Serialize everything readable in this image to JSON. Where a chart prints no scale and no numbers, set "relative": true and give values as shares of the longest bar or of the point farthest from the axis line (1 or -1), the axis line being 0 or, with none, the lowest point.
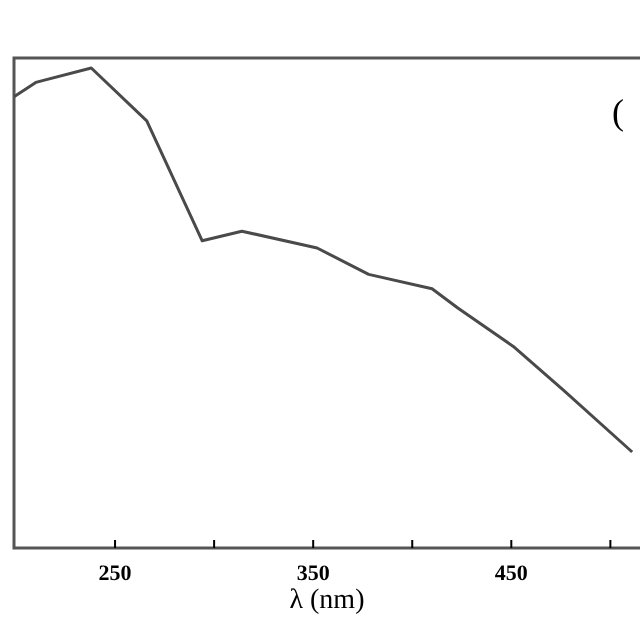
{
  "chart_data": {
    "type": "line",
    "relative": true,
    "xlabel": "λ (nm)",
    "annotations": [
      "("
    ],
    "x": [
      199,
      210,
      238,
      266,
      294,
      314,
      352,
      378,
      410,
      423,
      451,
      476,
      511
    ],
    "series": [
      {
        "color": "#4a4a4a",
        "values": [
          0.94,
          0.97,
          1,
          0.89,
          0.64,
          0.66,
          0.625,
          0.57,
          0.54,
          0.5,
          0.42,
          0.33,
          0.2
        ]
      }
    ],
    "xlim": [
      199,
      520
    ],
    "xticks": [
      250,
      {
        "value": 300,
        "label": null
      },
      350,
      {
        "value": 400,
        "label": null
      },
      450,
      {
        "value": 500,
        "label": null
      }
    ],
    "grid": false,
    "marker": "none",
    "line_style": "solid"
  }
}
